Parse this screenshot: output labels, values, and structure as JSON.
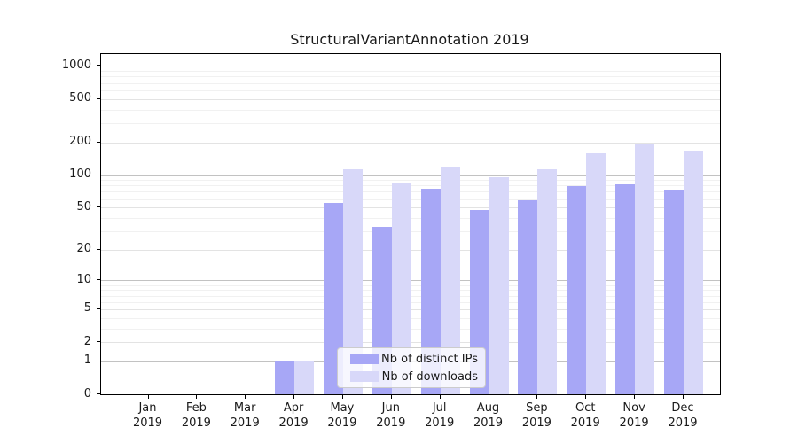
{
  "chart_data": {
    "type": "bar",
    "title": "StructuralVariantAnnotation 2019",
    "year_label": "2019",
    "categories": [
      "Jan",
      "Feb",
      "Mar",
      "Apr",
      "May",
      "Jun",
      "Jul",
      "Aug",
      "Sep",
      "Oct",
      "Nov",
      "Dec"
    ],
    "series": [
      {
        "name": "Nb of distinct IPs",
        "color": "#a7a7f6",
        "values": [
          0,
          0,
          0,
          1,
          55,
          33,
          75,
          47,
          58,
          79,
          82,
          72
        ]
      },
      {
        "name": "Nb of downloads",
        "color": "#d8d8f9",
        "values": [
          0,
          0,
          0,
          1,
          113,
          83,
          117,
          95,
          112,
          158,
          195,
          168
        ]
      }
    ],
    "xlabel": "",
    "ylabel": "",
    "scale": "log1p",
    "y_axis_ticks": [
      0,
      1,
      2,
      5,
      10,
      20,
      50,
      100,
      200,
      500,
      1000
    ],
    "y_major_gridlines": [
      1,
      10,
      100,
      1000
    ],
    "y_minor_gridlines": [
      3,
      4,
      6,
      7,
      8,
      9,
      30,
      40,
      60,
      70,
      80,
      90,
      300,
      400,
      600,
      700,
      800,
      900
    ],
    "ylim": [
      0,
      1285
    ],
    "grid": "horizontal",
    "legend_position": "inside-bottom-center",
    "colors": {
      "axis": "#000000",
      "text": "#1a1a1a",
      "major_gridline": "#c2c2c2",
      "labeled_gridline": "#e3e3e3",
      "minor_gridline": "#f1f1f1",
      "background": "#ffffff"
    }
  }
}
